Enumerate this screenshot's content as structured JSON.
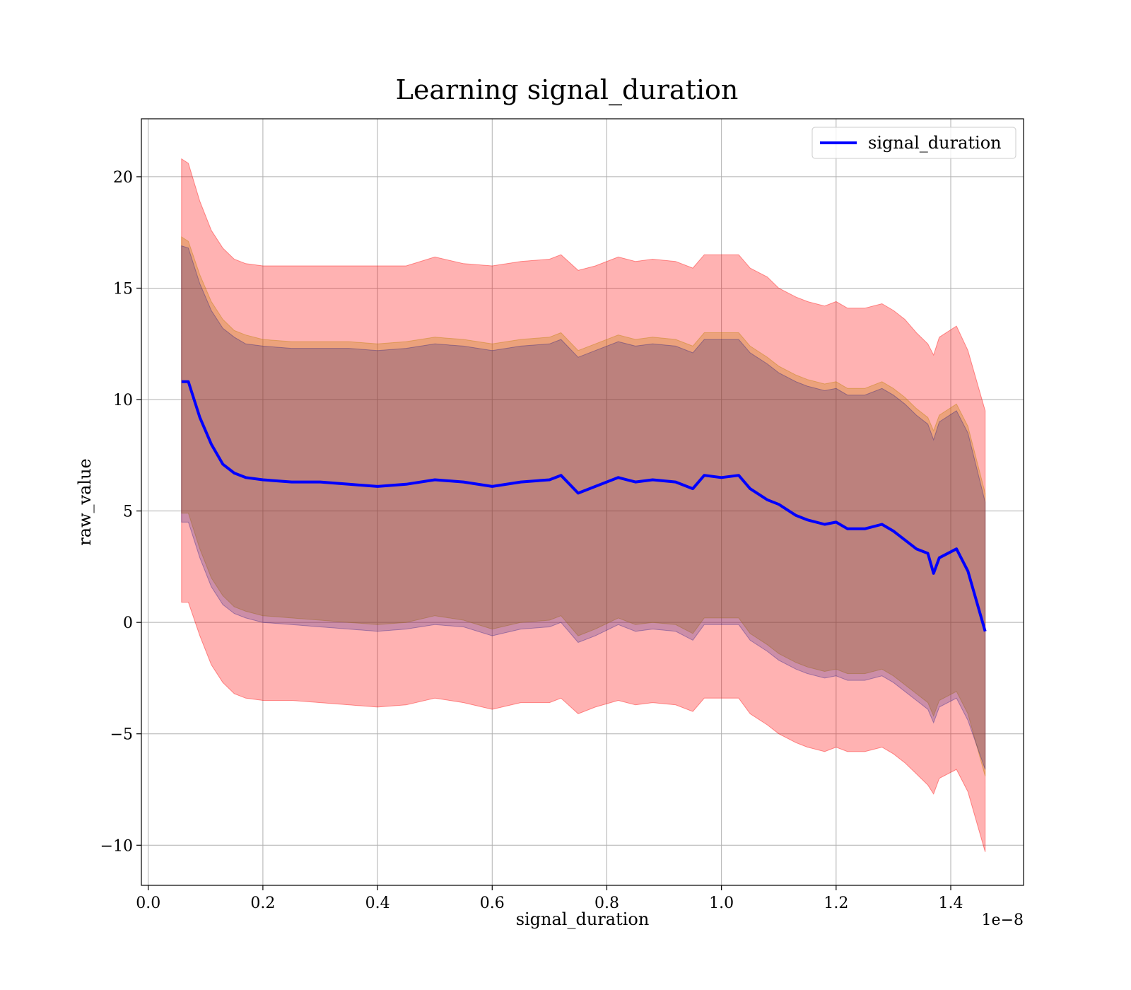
{
  "chart_data": {
    "type": "line",
    "title": "Learning signal_duration",
    "xlabel": "signal_duration",
    "ylabel": "raw_value",
    "x_offset_text": "1e−8",
    "xlim": [
      -0.012,
      1.527
    ],
    "ylim": [
      -11.8,
      22.6
    ],
    "x_ticks": [
      0.0,
      0.2,
      0.4,
      0.6,
      0.8,
      1.0,
      1.2,
      1.4
    ],
    "x_tick_labels": [
      "0.0",
      "0.2",
      "0.4",
      "0.6",
      "0.8",
      "1.0",
      "1.2",
      "1.4"
    ],
    "y_ticks": [
      -10,
      -5,
      0,
      5,
      10,
      15,
      20
    ],
    "y_tick_labels": [
      "−10",
      "−5",
      "0",
      "5",
      "10",
      "15",
      "20"
    ],
    "grid": true,
    "legend_position": "top-right",
    "x": [
      0.058,
      0.07,
      0.09,
      0.11,
      0.13,
      0.15,
      0.17,
      0.2,
      0.25,
      0.3,
      0.35,
      0.4,
      0.45,
      0.5,
      0.55,
      0.6,
      0.65,
      0.7,
      0.72,
      0.75,
      0.78,
      0.82,
      0.85,
      0.88,
      0.92,
      0.95,
      0.97,
      1.0,
      1.03,
      1.05,
      1.08,
      1.1,
      1.13,
      1.15,
      1.18,
      1.2,
      1.22,
      1.25,
      1.28,
      1.3,
      1.32,
      1.34,
      1.36,
      1.37,
      1.38,
      1.41,
      1.43,
      1.46
    ],
    "series": [
      {
        "name": "signal_duration",
        "color": "#0000ff",
        "values": [
          10.8,
          10.8,
          9.2,
          8.0,
          7.1,
          6.7,
          6.5,
          6.4,
          6.3,
          6.3,
          6.2,
          6.1,
          6.2,
          6.4,
          6.3,
          6.1,
          6.3,
          6.4,
          6.6,
          5.8,
          6.1,
          6.5,
          6.3,
          6.4,
          6.3,
          6.0,
          6.6,
          6.5,
          6.6,
          6.0,
          5.5,
          5.3,
          4.8,
          4.6,
          4.4,
          4.5,
          4.2,
          4.2,
          4.4,
          4.1,
          3.7,
          3.3,
          3.1,
          2.2,
          2.9,
          3.3,
          2.3,
          -0.4
        ]
      }
    ],
    "bands": [
      {
        "color": "#ff0000",
        "opacity": 0.3,
        "upper": [
          20.8,
          20.6,
          18.9,
          17.6,
          16.8,
          16.3,
          16.1,
          16.0,
          16.0,
          16.0,
          16.0,
          16.0,
          16.0,
          16.4,
          16.1,
          16.0,
          16.2,
          16.3,
          16.5,
          15.8,
          16.0,
          16.4,
          16.2,
          16.3,
          16.2,
          15.9,
          16.5,
          16.5,
          16.5,
          15.9,
          15.5,
          15.0,
          14.6,
          14.4,
          14.2,
          14.4,
          14.1,
          14.1,
          14.3,
          14.0,
          13.6,
          13.0,
          12.5,
          12.0,
          12.8,
          13.3,
          12.2,
          9.5
        ],
        "lower": [
          0.9,
          0.9,
          -0.6,
          -1.9,
          -2.7,
          -3.2,
          -3.4,
          -3.5,
          -3.5,
          -3.6,
          -3.7,
          -3.8,
          -3.7,
          -3.4,
          -3.6,
          -3.9,
          -3.6,
          -3.6,
          -3.4,
          -4.1,
          -3.8,
          -3.5,
          -3.7,
          -3.6,
          -3.7,
          -4.0,
          -3.4,
          -3.4,
          -3.4,
          -4.1,
          -4.6,
          -5.0,
          -5.4,
          -5.6,
          -5.8,
          -5.6,
          -5.8,
          -5.8,
          -5.6,
          -5.9,
          -6.3,
          -6.8,
          -7.3,
          -7.7,
          -7.0,
          -6.6,
          -7.6,
          -10.3
        ]
      },
      {
        "color": "#bf7f00",
        "opacity": 0.3,
        "upper": [
          17.3,
          17.1,
          15.6,
          14.4,
          13.6,
          13.1,
          12.9,
          12.7,
          12.6,
          12.6,
          12.6,
          12.5,
          12.6,
          12.8,
          12.7,
          12.5,
          12.7,
          12.8,
          13.0,
          12.2,
          12.5,
          12.9,
          12.7,
          12.8,
          12.7,
          12.4,
          13.0,
          13.0,
          13.0,
          12.4,
          11.9,
          11.5,
          11.1,
          10.9,
          10.7,
          10.8,
          10.5,
          10.5,
          10.8,
          10.5,
          10.1,
          9.6,
          9.2,
          8.6,
          9.3,
          9.8,
          8.8,
          5.8
        ],
        "lower": [
          4.9,
          4.9,
          3.3,
          2.0,
          1.2,
          0.7,
          0.5,
          0.3,
          0.2,
          0.1,
          0.0,
          -0.1,
          0.0,
          0.3,
          0.1,
          -0.3,
          0.0,
          0.1,
          0.3,
          -0.6,
          -0.3,
          0.2,
          -0.1,
          0.0,
          -0.1,
          -0.5,
          0.2,
          0.2,
          0.2,
          -0.5,
          -1.0,
          -1.4,
          -1.8,
          -2.0,
          -2.2,
          -2.1,
          -2.3,
          -2.3,
          -2.1,
          -2.4,
          -2.8,
          -3.2,
          -3.6,
          -4.2,
          -3.5,
          -3.1,
          -4.1,
          -6.9
        ]
      },
      {
        "color": "#000080",
        "opacity": 0.2,
        "upper": [
          16.9,
          16.8,
          15.2,
          14.0,
          13.2,
          12.8,
          12.5,
          12.4,
          12.3,
          12.3,
          12.3,
          12.2,
          12.3,
          12.5,
          12.4,
          12.2,
          12.4,
          12.5,
          12.7,
          11.9,
          12.2,
          12.6,
          12.4,
          12.5,
          12.4,
          12.1,
          12.7,
          12.7,
          12.7,
          12.1,
          11.6,
          11.2,
          10.8,
          10.6,
          10.4,
          10.5,
          10.2,
          10.2,
          10.5,
          10.2,
          9.8,
          9.3,
          8.9,
          8.2,
          9.0,
          9.5,
          8.5,
          5.4
        ],
        "lower": [
          4.5,
          4.5,
          2.9,
          1.6,
          0.8,
          0.4,
          0.2,
          0.0,
          -0.1,
          -0.2,
          -0.3,
          -0.4,
          -0.3,
          -0.1,
          -0.2,
          -0.6,
          -0.3,
          -0.2,
          0.0,
          -0.9,
          -0.6,
          -0.1,
          -0.4,
          -0.3,
          -0.4,
          -0.8,
          -0.1,
          -0.1,
          -0.1,
          -0.8,
          -1.3,
          -1.7,
          -2.1,
          -2.3,
          -2.5,
          -2.4,
          -2.6,
          -2.6,
          -2.4,
          -2.7,
          -3.1,
          -3.5,
          -3.9,
          -4.5,
          -3.8,
          -3.4,
          -4.4,
          -6.6
        ]
      }
    ]
  }
}
